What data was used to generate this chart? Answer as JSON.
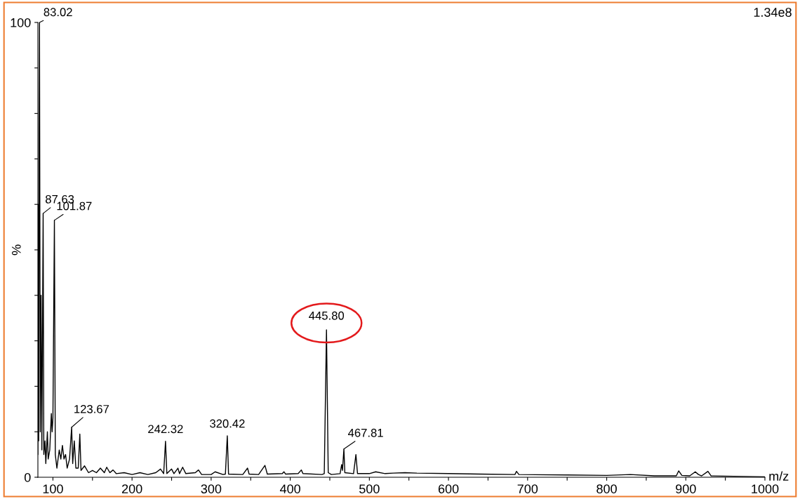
{
  "chart_data": {
    "type": "line",
    "xlabel": "m/z",
    "ylabel": "%",
    "series": [
      {
        "color": "#000000",
        "x": [
          81,
          81.5,
          82,
          82.5,
          83.02,
          84,
          85,
          86,
          87.63,
          88.5,
          90,
          91,
          93,
          94,
          96,
          98,
          99,
          100,
          101.87,
          103,
          105,
          108,
          110,
          112,
          114,
          116,
          118,
          121,
          123.67,
          125,
          127,
          129,
          132,
          134,
          135.5,
          140,
          145,
          150,
          155,
          160,
          165,
          168,
          172,
          176,
          180,
          190,
          200,
          210,
          220,
          230,
          236,
          240,
          242.32,
          244,
          250,
          253,
          258,
          260,
          264,
          268,
          280,
          284,
          288,
          300,
          305,
          315,
          318,
          320.42,
          322,
          340,
          346,
          348,
          360,
          368,
          371,
          390,
          392,
          394,
          410,
          414,
          416,
          440,
          443,
          445.8,
          448,
          452,
          463,
          465,
          466,
          467.81,
          469,
          480,
          483,
          485,
          500,
          508,
          520,
          530,
          545,
          560,
          600,
          640,
          684,
          686,
          689,
          750,
          800,
          830,
          860,
          888,
          891,
          895,
          905,
          912,
          916,
          920,
          928,
          932,
          1000
        ],
        "values": [
          5,
          60,
          8,
          75,
          100,
          10,
          40,
          6,
          58,
          5,
          8,
          3,
          10,
          4,
          6,
          14,
          10,
          13,
          56.5,
          5,
          2,
          6,
          4,
          7,
          4,
          5,
          2,
          4,
          11,
          3,
          8,
          2,
          2,
          9.5,
          1.5,
          2.5,
          1,
          1.5,
          1,
          2,
          1,
          2.2,
          1,
          1.6,
          0.8,
          1,
          0.6,
          1,
          0.6,
          1,
          1.8,
          0.8,
          7.9,
          0.8,
          1.8,
          0.8,
          2,
          0.8,
          2.2,
          0.8,
          1,
          1.6,
          0.6,
          0.6,
          1.2,
          0.6,
          0.7,
          9.1,
          0.7,
          0.6,
          2,
          0.7,
          0.6,
          2.6,
          0.7,
          0.8,
          1.2,
          0.7,
          0.8,
          1.6,
          0.8,
          0.6,
          0.8,
          32.4,
          1,
          0.6,
          0.8,
          2.8,
          1.5,
          6.2,
          1,
          0.8,
          5,
          0.8,
          0.8,
          1.2,
          0.8,
          0.9,
          1,
          0.9,
          0.8,
          0.7,
          0.6,
          1.3,
          0.6,
          0.5,
          0.4,
          0.6,
          0.3,
          0.3,
          1.4,
          0.4,
          0.3,
          1.2,
          0.6,
          0.3,
          1.3,
          0.3,
          0.1
        ]
      }
    ],
    "xlim": [
      81,
      1000
    ],
    "xticks": [
      100,
      {
        "value": 150,
        "label": null
      },
      200,
      {
        "value": 250,
        "label": null
      },
      300,
      {
        "value": 350,
        "label": null
      },
      400,
      {
        "value": 450,
        "label": null
      },
      500,
      {
        "value": 550,
        "label": null
      },
      600,
      {
        "value": 650,
        "label": null
      },
      700,
      {
        "value": 750,
        "label": null
      },
      800,
      {
        "value": 850,
        "label": null
      },
      900,
      {
        "value": 950,
        "label": null
      },
      1000
    ],
    "ylim": [
      0,
      100
    ],
    "yticks": [
      0,
      {
        "value": 10,
        "label": null
      },
      {
        "value": 20,
        "label": null
      },
      {
        "value": 30,
        "label": null
      },
      {
        "value": 40,
        "label": null
      },
      {
        "value": 50,
        "label": null
      },
      {
        "value": 60,
        "label": null
      },
      {
        "value": 70,
        "label": null
      },
      {
        "value": 80,
        "label": null
      },
      {
        "value": 90,
        "label": null
      },
      100
    ],
    "grid": false,
    "legend": false,
    "marker": "none",
    "line_style": "solid",
    "annotations": [
      {
        "text": "83.02",
        "x": 83.02,
        "y": 100
      },
      {
        "text": "87.63",
        "x": 87.63,
        "y": 58
      },
      {
        "text": "101.87",
        "x": 101.87,
        "y": 56.5
      },
      {
        "text": "123.67",
        "x": 123.67,
        "y": 11
      },
      {
        "text": "242.32",
        "x": 242.32,
        "y": 7.9
      },
      {
        "text": "320.42",
        "x": 320.42,
        "y": 9.1
      },
      {
        "text": "445.80",
        "x": 445.8,
        "y": 32.4
      },
      {
        "text": "467.81",
        "x": 467.81,
        "y": 6.2
      },
      "1.34e8"
    ]
  }
}
